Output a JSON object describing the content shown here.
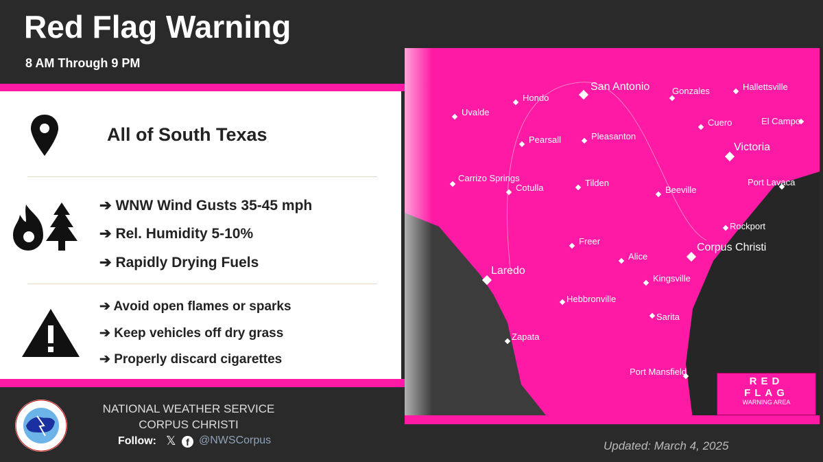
{
  "header": {
    "title": "Red Flag Warning",
    "subtitle": "8 AM Through 9 PM"
  },
  "location": {
    "icon": "map-pin-icon",
    "text": "All of South Texas"
  },
  "conditions": {
    "icon": "fire-tree-icon",
    "items": [
      "WNW Wind Gusts 35-45 mph",
      "Rel. Humidity 5-10%",
      "Rapidly Drying Fuels"
    ]
  },
  "precautions": {
    "icon": "warning-triangle-icon",
    "items": [
      "Avoid open flames or sparks",
      "Keep vehicles off dry grass",
      "Properly discard cigarettes"
    ]
  },
  "footer": {
    "org": "NATIONAL WEATHER SERVICE",
    "office": "CORPUS CHRISTI",
    "follow": "Follow:",
    "handle": "@NWSCorpus",
    "updated": "Updated: March 4, 2025"
  },
  "map": {
    "cities": [
      "San Antonio",
      "Hondo",
      "Uvalde",
      "Gonzales",
      "Hallettsville",
      "Cuero",
      "El Campo",
      "Victoria",
      "Pearsall",
      "Pleasanton",
      "Carrizo Springs",
      "Cotulla",
      "Tilden",
      "Beeville",
      "Port Lavaca",
      "Rockport",
      "Corpus Christi",
      "Freer",
      "Alice",
      "Laredo",
      "Kingsville",
      "Hebbronville",
      "Sarita",
      "Zapata",
      "Port Mansfield"
    ],
    "legend": {
      "line1": "RED",
      "line2": "FLAG",
      "line3": "WARNING AREA"
    },
    "colors": {
      "warning": "#ff1aa6",
      "land": "#3a3a3a",
      "water": "#2a2a2a"
    }
  }
}
